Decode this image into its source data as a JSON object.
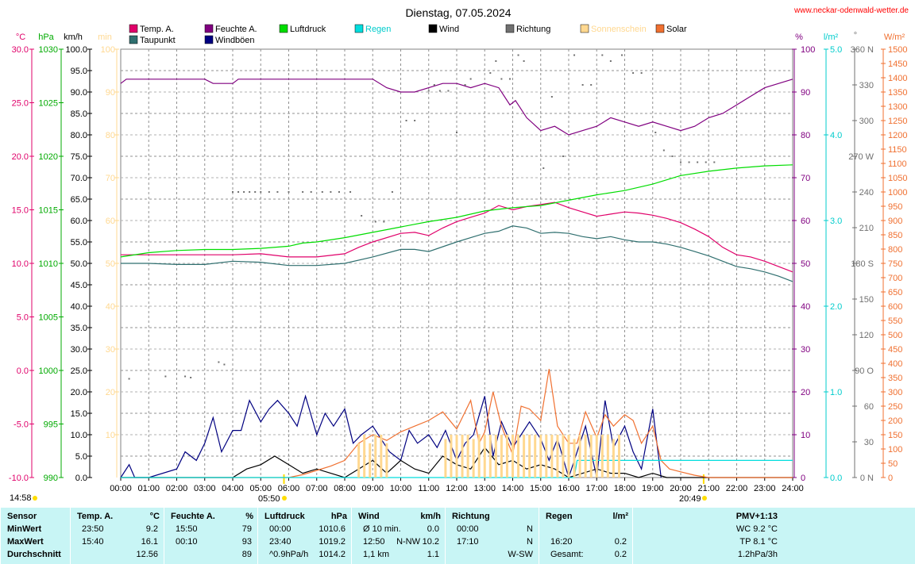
{
  "header": {
    "title": "Dienstag, 07.05.2024",
    "site": "www.neckar-odenwald-wetter.de"
  },
  "legend": [
    {
      "label": "Temp. A.",
      "color": "#e0006a"
    },
    {
      "label": "Taupunkt",
      "color": "#2f6f6f"
    },
    {
      "label": "Feuchte A.",
      "color": "#800080"
    },
    {
      "label": "Windböen",
      "color": "#000080"
    },
    {
      "label": "Luftdruck",
      "color": "#00dd00"
    },
    {
      "label": "Regen",
      "color": "#00dddd"
    },
    {
      "label": "Wind",
      "color": "#000000"
    },
    {
      "label": "Richtung",
      "color": "#707070"
    },
    {
      "label": "Sonnenschein",
      "color": "#ffd890"
    },
    {
      "label": "Solar",
      "color": "#f07030"
    }
  ],
  "axis_units": {
    "temp": "°C",
    "pressure": "hPa",
    "wind": "km/h",
    "sun": "min",
    "humidity": "%",
    "rain": "l/m²",
    "dir": "°",
    "solar": "W/m²"
  },
  "sun_times": {
    "now": "14:58",
    "sunrise": "05:50",
    "sunset": "20:49"
  },
  "chart_data": {
    "type": "line",
    "x_unit": "time of day (hours)",
    "xlim": [
      0,
      24
    ],
    "x_ticks": [
      "00:00",
      "01:00",
      "02:00",
      "03:00",
      "04:00",
      "05:00",
      "06:00",
      "07:00",
      "08:00",
      "09:00",
      "10:00",
      "11:00",
      "12:00",
      "13:00",
      "14:00",
      "15:00",
      "16:00",
      "17:00",
      "18:00",
      "19:00",
      "20:00",
      "21:00",
      "22:00",
      "23:00",
      "24:00"
    ],
    "axes": {
      "temp": {
        "ylim": [
          -10,
          30
        ],
        "ticks": [
          "-10.0",
          "-5.0",
          "0.0",
          "5.0",
          "10.0",
          "15.0",
          "20.0",
          "25.0",
          "30.0"
        ]
      },
      "pressure": {
        "ylim": [
          990,
          1030
        ],
        "ticks": [
          "990",
          "995",
          "1000",
          "1005",
          "1010",
          "1015",
          "1020",
          "1025",
          "1030"
        ]
      },
      "wind": {
        "ylim": [
          0,
          100
        ],
        "ticks": [
          "0.0",
          "5.0",
          "10.0",
          "15.0",
          "20.0",
          "25.0",
          "30.0",
          "35.0",
          "40.0",
          "45.0",
          "50.0",
          "55.0",
          "60.0",
          "65.0",
          "70.0",
          "75.0",
          "80.0",
          "85.0",
          "90.0",
          "95.0",
          "100.0"
        ]
      },
      "sun": {
        "ylim": [
          0,
          100
        ],
        "ticks": [
          "10",
          "20",
          "30",
          "40",
          "50",
          "60",
          "70",
          "80",
          "90",
          "100"
        ]
      },
      "humidity": {
        "ylim": [
          0,
          100
        ],
        "ticks": [
          "0",
          "10",
          "20",
          "30",
          "40",
          "50",
          "60",
          "70",
          "80",
          "90",
          "100"
        ]
      },
      "rain": {
        "ylim": [
          0,
          5
        ],
        "ticks": [
          "0.0",
          "1.0",
          "2.0",
          "3.0",
          "4.0",
          "5.0"
        ]
      },
      "dir": {
        "ylim": [
          0,
          360
        ],
        "ticks": [
          "0 N",
          "30",
          "60",
          "90 O",
          "120",
          "150",
          "180 S",
          "210",
          "240",
          "270 W",
          "300",
          "330",
          "360 N"
        ]
      },
      "solar": {
        "ylim": [
          0,
          1500
        ],
        "ticks": [
          "0",
          "50",
          "100",
          "150",
          "200",
          "250",
          "300",
          "350",
          "400",
          "450",
          "500",
          "550",
          "600",
          "650",
          "700",
          "750",
          "800",
          "850",
          "900",
          "950",
          "1000",
          "1050",
          "1100",
          "1150",
          "1200",
          "1250",
          "1300",
          "1350",
          "1400",
          "1450",
          "1500"
        ]
      }
    },
    "series": [
      {
        "name": "Temp. A.",
        "axis": "temp",
        "color": "#e0006a",
        "x": [
          0,
          1,
          2,
          3,
          4,
          5,
          6,
          7,
          8,
          8.5,
          9,
          10,
          10.5,
          11,
          11.5,
          12,
          12.5,
          13,
          13.5,
          14,
          14.5,
          15,
          15.5,
          16,
          16.5,
          17,
          17.5,
          18,
          18.5,
          19,
          19.5,
          20,
          20.5,
          21,
          21.5,
          22,
          22.5,
          23,
          23.5,
          24
        ],
        "y": [
          10.8,
          10.8,
          10.8,
          10.8,
          10.8,
          10.9,
          10.6,
          10.6,
          10.9,
          11.5,
          12.0,
          12.8,
          12.9,
          12.6,
          13.3,
          13.9,
          14.3,
          14.7,
          15.4,
          15.0,
          15.3,
          15.5,
          15.7,
          15.2,
          14.8,
          14.4,
          14.6,
          14.8,
          14.7,
          14.5,
          14.2,
          13.8,
          13.2,
          12.5,
          11.5,
          10.8,
          10.6,
          10.2,
          9.7,
          9.2
        ]
      },
      {
        "name": "Taupunkt",
        "axis": "temp",
        "color": "#2f6f6f",
        "x": [
          0,
          1,
          2,
          3,
          4,
          5,
          6,
          7,
          8,
          9,
          10,
          10.5,
          11,
          12,
          12.5,
          13,
          13.5,
          14,
          14.5,
          15,
          15.5,
          16,
          16.5,
          17,
          17.5,
          18,
          18.5,
          19,
          19.5,
          20,
          20.5,
          21,
          21.5,
          22,
          22.5,
          23,
          23.5,
          24
        ],
        "y": [
          10.0,
          10.0,
          9.9,
          9.9,
          10.2,
          10.1,
          9.8,
          9.8,
          10.0,
          10.6,
          11.3,
          11.3,
          11.1,
          12.0,
          12.4,
          12.8,
          13.0,
          13.5,
          13.3,
          12.8,
          12.9,
          12.8,
          12.5,
          12.3,
          12.5,
          12.2,
          12.0,
          12.0,
          11.8,
          11.5,
          11.1,
          10.7,
          10.2,
          9.7,
          9.5,
          9.2,
          8.8,
          8.3
        ]
      },
      {
        "name": "Feuchte A.",
        "axis": "humidity",
        "color": "#800080",
        "x": [
          0,
          0.2,
          3,
          3.3,
          4,
          4.2,
          9,
          9.5,
          10,
          10.5,
          11,
          11.5,
          12,
          12.5,
          13,
          13.5,
          13.9,
          14.1,
          14.5,
          15,
          15.5,
          16,
          16.5,
          17,
          17.5,
          18,
          18.5,
          19,
          19.5,
          20,
          20.5,
          21,
          21.5,
          22,
          22.5,
          23,
          23.5,
          24
        ],
        "y": [
          92,
          93,
          93,
          92,
          92,
          93,
          93,
          91,
          90,
          90,
          91,
          92,
          92,
          91,
          92,
          91,
          87,
          88,
          84,
          81,
          82,
          80,
          81,
          82,
          84,
          83,
          82,
          83,
          82,
          81,
          82,
          84,
          85,
          87,
          89,
          91,
          92,
          93
        ]
      },
      {
        "name": "Luftdruck",
        "axis": "pressure",
        "color": "#00dd00",
        "x": [
          0,
          1,
          2,
          3,
          4,
          5,
          6,
          6.5,
          7,
          8,
          9,
          10,
          11,
          12,
          13,
          14,
          15,
          16,
          17,
          18,
          19,
          20,
          21,
          22,
          23,
          24
        ],
        "y": [
          1010.6,
          1011.0,
          1011.2,
          1011.3,
          1011.3,
          1011.4,
          1011.6,
          1011.9,
          1012.0,
          1012.4,
          1012.9,
          1013.4,
          1013.9,
          1014.3,
          1014.9,
          1015.2,
          1015.4,
          1015.9,
          1016.4,
          1016.8,
          1017.4,
          1018.2,
          1018.6,
          1018.9,
          1019.1,
          1019.2
        ]
      },
      {
        "name": "Windböen",
        "axis": "wind",
        "color": "#000080",
        "x": [
          0,
          0.3,
          0.5,
          1,
          2,
          2.3,
          2.7,
          3,
          3.3,
          3.6,
          4,
          4.3,
          4.6,
          5,
          5.3,
          5.6,
          6,
          6.3,
          6.6,
          7,
          7.3,
          7.6,
          8,
          8.3,
          8.6,
          9,
          9.3,
          9.6,
          10,
          10.3,
          10.6,
          11,
          11.3,
          11.6,
          12,
          12.3,
          12.6,
          13,
          13.3,
          13.6,
          14,
          14.3,
          14.6,
          15,
          15.3,
          15.6,
          16,
          16.3,
          16.6,
          17,
          17.3,
          17.6,
          18,
          18.3,
          18.6,
          19,
          19.3
        ],
        "y": [
          0,
          3,
          0,
          0,
          2,
          6,
          4,
          8,
          14,
          6,
          11,
          11,
          18,
          13,
          16,
          18,
          15,
          12,
          19,
          10,
          15,
          12,
          16,
          8,
          10,
          12,
          9,
          6,
          4,
          11,
          8,
          10,
          7,
          11,
          4,
          8,
          10,
          19,
          5,
          13,
          7,
          10,
          13,
          9,
          4,
          9,
          0,
          6,
          12,
          0,
          18,
          7,
          12,
          6,
          2,
          16,
          0
        ]
      },
      {
        "name": "Wind",
        "axis": "wind",
        "color": "#000000",
        "x": [
          0,
          4,
          4.5,
          5,
          5.5,
          6,
          6.5,
          7,
          7.5,
          8,
          8.5,
          9,
          9.5,
          10,
          10.5,
          11,
          11.5,
          12,
          12.5,
          13,
          13.5,
          14,
          14.5,
          15,
          15.5,
          16,
          16.5,
          17,
          17.5,
          18,
          18.5,
          19,
          19.5,
          24
        ],
        "y": [
          0,
          0,
          2,
          3,
          5,
          3,
          1,
          2,
          1,
          0,
          2,
          4,
          1,
          4,
          2,
          1,
          5,
          3,
          2,
          7,
          3,
          4,
          2,
          3,
          2,
          0,
          1,
          2,
          1,
          1,
          0,
          1,
          0,
          0
        ]
      },
      {
        "name": "Solar",
        "axis": "solar",
        "color": "#f07030",
        "x": [
          0,
          6,
          6.5,
          7,
          7.5,
          8,
          8.5,
          9,
          9.5,
          10,
          10.5,
          11,
          11.5,
          12,
          12.5,
          12.8,
          13,
          13.3,
          13.6,
          14,
          14.3,
          14.6,
          15,
          15.3,
          15.6,
          16,
          16.3,
          16.6,
          17,
          17.3,
          17.6,
          18,
          18.3,
          18.6,
          19,
          19.3,
          19.6,
          20,
          20.5,
          21,
          24
        ],
        "y": [
          0,
          0,
          10,
          25,
          40,
          60,
          120,
          150,
          130,
          160,
          180,
          200,
          230,
          170,
          270,
          120,
          160,
          300,
          180,
          80,
          250,
          240,
          200,
          380,
          180,
          120,
          120,
          230,
          140,
          220,
          180,
          220,
          200,
          120,
          180,
          60,
          30,
          20,
          8,
          0,
          0
        ]
      },
      {
        "name": "Regen",
        "axis": "rain",
        "color": "#00dddd",
        "x": [
          0,
          16.2,
          16.3,
          24
        ],
        "y": [
          0,
          0,
          0.2,
          0.2
        ]
      },
      {
        "name": "Richtung",
        "axis": "dir",
        "color": "#707070",
        "style": "points",
        "x": [
          0.3,
          1.6,
          2.3,
          2.5,
          3.5,
          3.7,
          4,
          4.2,
          4.4,
          4.6,
          4.8,
          5.0,
          5.3,
          5.6,
          6.0,
          6.5,
          6.8,
          7.2,
          7.5,
          7.8,
          8.2,
          8.6,
          9.1,
          9.4,
          9.7,
          10.2,
          10.5,
          11,
          11.2,
          11.4,
          11.7,
          12,
          12.3,
          12.5,
          13.2,
          13.4,
          13.6,
          13.9,
          14.2,
          14.4,
          15.1,
          15.4,
          15.8,
          16.2,
          16.5,
          16.8,
          17.2,
          17.5,
          17.9,
          18.3,
          18.6,
          19.1,
          19.4,
          19.7,
          20.0,
          20.3,
          20.6,
          20.9,
          21.2
        ],
        "y": [
          83,
          85,
          85,
          84,
          97,
          95,
          240,
          240,
          240,
          240,
          240,
          240,
          240,
          240,
          240,
          240,
          240,
          240,
          240,
          240,
          240,
          220,
          215,
          215,
          240,
          300,
          300,
          325,
          330,
          325,
          325,
          290,
          330,
          335,
          340,
          350,
          335,
          335,
          355,
          350,
          260,
          320,
          270,
          355,
          330,
          330,
          355,
          350,
          355,
          340,
          340,
          290,
          275,
          270,
          265,
          265,
          265,
          265,
          265
        ]
      },
      {
        "name": "Sonnenschein",
        "axis": "sun",
        "color": "#ffd890",
        "style": "bars",
        "x": [
          8.5,
          8.7,
          8.9,
          9.1,
          9.3,
          9.5,
          11.6,
          11.8,
          12.0,
          12.2,
          12.4,
          12.6,
          12.8,
          13.0,
          13.2,
          13.4,
          13.6,
          13.8,
          14.0,
          14.2,
          14.4,
          14.6,
          14.8,
          15.0,
          15.2,
          15.4,
          15.6,
          15.8,
          16.0,
          16.2,
          16.4,
          16.6,
          16.8,
          17.0,
          17.2,
          17.4,
          17.6,
          17.8
        ],
        "y": [
          8,
          10,
          8,
          10,
          10,
          8,
          9,
          10,
          10,
          10,
          10,
          9,
          10,
          10,
          10,
          10,
          10,
          10,
          10,
          10,
          10,
          10,
          10,
          10,
          10,
          10,
          10,
          10,
          10,
          9,
          10,
          10,
          10,
          10,
          10,
          10,
          9,
          10
        ]
      }
    ]
  },
  "stats": {
    "sensor": {
      "header": "Sensor",
      "rows": [
        "MinWert",
        "MaxWert",
        "Durchschnitt"
      ]
    },
    "temp": {
      "header": "Temp. A.",
      "unit": "°C",
      "times": [
        "23:50",
        "15:40",
        ""
      ],
      "values": [
        "9.2",
        "16.1",
        "12.56"
      ]
    },
    "humidity": {
      "header": "Feuchte A.",
      "unit": "%",
      "times": [
        "15:50",
        "00:10",
        ""
      ],
      "values": [
        "79",
        "93",
        "89"
      ]
    },
    "pressure": {
      "header": "Luftdruck",
      "unit": "hPa",
      "times": [
        "00:00",
        "23:40",
        "^0.9hPa/h"
      ],
      "values": [
        "1010.6",
        "1019.2",
        "1014.2"
      ]
    },
    "wind": {
      "header": "Wind",
      "unit": "km/h",
      "times": [
        "Ø 10 min.",
        "12:50",
        "1,1 km"
      ],
      "mid": [
        "",
        "N-NW",
        "1,1 km"
      ],
      "values": [
        "0.0",
        "10.2",
        "1.1"
      ]
    },
    "dir": {
      "header": "Richtung",
      "times": [
        "00:00",
        "17:10",
        ""
      ],
      "values": [
        "N",
        "N",
        "W-SW"
      ]
    },
    "rain": {
      "header": "Regen",
      "unit": "l/m²",
      "times": [
        "",
        "16:20",
        "Gesamt:"
      ],
      "values": [
        "",
        "0.2",
        "0.2"
      ]
    },
    "pmv": {
      "header": "PMV+1:13",
      "values": [
        "WC 9.2 °C",
        "TP 8.1 °C",
        "1.2hPa/3h"
      ]
    }
  }
}
